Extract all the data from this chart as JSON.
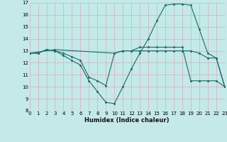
{
  "xlabel": "Humidex (Indice chaleur)",
  "bg_color": "#c5e8e8",
  "grid_color": "#d4b0b0",
  "line_color": "#1a6b6b",
  "xlim": [
    0,
    23
  ],
  "ylim": [
    8,
    17
  ],
  "xticks": [
    0,
    1,
    2,
    3,
    4,
    5,
    6,
    7,
    8,
    9,
    10,
    11,
    12,
    13,
    14,
    15,
    16,
    17,
    18,
    19,
    20,
    21,
    22,
    23
  ],
  "yticks": [
    8,
    9,
    10,
    11,
    12,
    13,
    14,
    15,
    16,
    17
  ],
  "series": [
    {
      "x": [
        0,
        1,
        2,
        3,
        4,
        5,
        6,
        7,
        8,
        9,
        10,
        11,
        12,
        13,
        14,
        15,
        16,
        17,
        18,
        19,
        20,
        21,
        22,
        23
      ],
      "y": [
        12.8,
        12.8,
        13.1,
        13.0,
        12.6,
        12.2,
        11.8,
        10.5,
        9.6,
        8.7,
        8.6,
        10.0,
        11.5,
        12.8,
        14.0,
        15.5,
        16.8,
        16.9,
        16.9,
        16.8,
        14.8,
        12.8,
        12.4,
        10.0
      ]
    },
    {
      "x": [
        0,
        1,
        2,
        3,
        4,
        5,
        6,
        7,
        8,
        9,
        10,
        11,
        12,
        13,
        14,
        15,
        16,
        17,
        18,
        19,
        20,
        21,
        22,
        23
      ],
      "y": [
        12.8,
        12.8,
        13.1,
        13.0,
        12.8,
        12.5,
        12.2,
        10.8,
        10.5,
        10.1,
        12.8,
        13.0,
        13.0,
        13.0,
        13.0,
        13.0,
        13.0,
        13.0,
        13.0,
        13.0,
        12.8,
        12.4,
        12.4,
        10.0
      ]
    },
    {
      "x": [
        0,
        3,
        10,
        11,
        12,
        13,
        14,
        15,
        16,
        17,
        18,
        19,
        20,
        21,
        22,
        23
      ],
      "y": [
        12.8,
        13.1,
        12.8,
        13.0,
        13.0,
        13.3,
        13.3,
        13.3,
        13.3,
        13.3,
        13.3,
        10.5,
        10.5,
        10.5,
        10.5,
        10.0
      ]
    }
  ]
}
